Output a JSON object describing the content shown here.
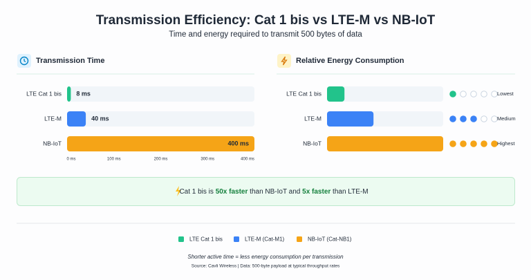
{
  "header": {
    "title": "Transmission Efficiency: Cat 1 bis vs LTE-M vs NB-IoT",
    "subtitle": "Time and energy required to transmit 500 bytes of data"
  },
  "chart_data": [
    {
      "type": "hbar",
      "title": "Transmission Time",
      "categories": [
        "LTE Cat 1 bis",
        "LTE-M",
        "NB-IoT"
      ],
      "values": [
        8,
        40,
        400
      ],
      "value_labels": [
        "8 ms",
        "40 ms",
        "400 ms"
      ],
      "colors": [
        "#22c38b",
        "#3b82f6",
        "#f5a417"
      ],
      "xlim": [
        0,
        400
      ],
      "xticks": [
        {
          "value": 0,
          "label": "0 ms"
        },
        {
          "value": 100,
          "label": "100 ms"
        },
        {
          "value": 200,
          "label": "200 ms"
        },
        {
          "value": 300,
          "label": "300 ms"
        },
        {
          "value": 400,
          "label": "400 ms"
        }
      ]
    },
    {
      "type": "hbar",
      "title": "Relative Energy Consumption",
      "categories": [
        "LTE Cat 1 bis",
        "LTE-M",
        "NB-IoT"
      ],
      "values": [
        15,
        40,
        100
      ],
      "colors": [
        "#22c38b",
        "#3b82f6",
        "#f5a417"
      ],
      "xlim": [
        0,
        100
      ],
      "levels": [
        1,
        3,
        5
      ],
      "level_max": 5,
      "level_labels": [
        "Lowest",
        "Medium",
        "Highest"
      ]
    }
  ],
  "callout": {
    "parts": [
      "Cat 1 bis is ",
      "50x faster",
      " than NB-IoT and ",
      "5x faster",
      " than LTE-M"
    ]
  },
  "legend": [
    {
      "name": "LTE Cat 1 bis",
      "color": "#22c38b"
    },
    {
      "name": "LTE-M (Cat-M1)",
      "color": "#3b82f6"
    },
    {
      "name": "NB-IoT (Cat-NB1)",
      "color": "#f5a417"
    }
  ],
  "footer": {
    "note": "Shorter active time = less energy consumption per transmission",
    "source": "Source: Cavli Wireless | Data: 500-byte payload at typical throughput rates"
  }
}
